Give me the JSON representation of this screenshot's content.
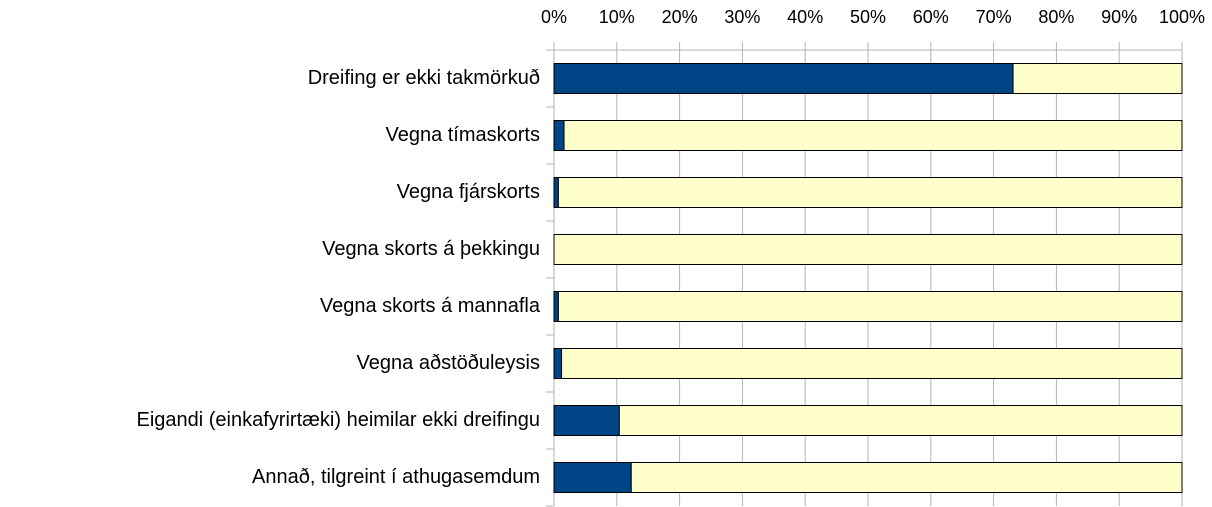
{
  "chart_data": {
    "type": "bar",
    "orientation": "horizontal",
    "stacked": true,
    "categories": [
      "Dreifing er ekki takmörkuð",
      "Vegna tímaskorts",
      "Vegna fjárskorts",
      "Vegna skorts á þekkingu",
      "Vegna skorts á mannafla",
      "Vegna aðstöðuleysis",
      "Eigandi (einkafyrirtæki) heimilar ekki dreifingu",
      "Annað, tilgreint í athugasemdum"
    ],
    "series": [
      {
        "color": "#004586",
        "values": [
          73.1,
          1.6,
          0.7,
          0,
          0.7,
          1.2,
          10.4,
          12.3
        ]
      },
      {
        "color": "#ffffcc",
        "values": [
          26.9,
          98.4,
          99.3,
          100,
          99.3,
          98.8,
          89.6,
          87.7
        ]
      }
    ],
    "xlim": [
      0,
      100
    ],
    "xticks": [
      {
        "value": 0,
        "label": "0%"
      },
      {
        "value": 10,
        "label": "10%"
      },
      {
        "value": 20,
        "label": "20%"
      },
      {
        "value": 30,
        "label": "30%"
      },
      {
        "value": 40,
        "label": "40%"
      },
      {
        "value": 50,
        "label": "50%"
      },
      {
        "value": 60,
        "label": "60%"
      },
      {
        "value": 70,
        "label": "70%"
      },
      {
        "value": 80,
        "label": "80%"
      },
      {
        "value": 90,
        "label": "90%"
      },
      {
        "value": 100,
        "label": "100%"
      }
    ],
    "grid": true
  }
}
